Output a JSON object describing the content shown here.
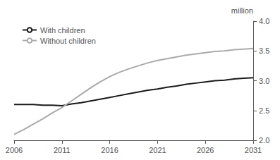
{
  "chart_data": {
    "type": "line",
    "ylabel": "million",
    "x": [
      2006,
      2007,
      2008,
      2009,
      2010,
      2011,
      2012,
      2013,
      2014,
      2015,
      2016,
      2017,
      2018,
      2019,
      2020,
      2021,
      2022,
      2023,
      2024,
      2025,
      2026,
      2027,
      2028,
      2029,
      2030,
      2031
    ],
    "series": [
      {
        "name": "With children",
        "color": "#1a1a1a",
        "values": [
          2.6,
          2.6,
          2.6,
          2.59,
          2.59,
          2.58,
          2.61,
          2.63,
          2.66,
          2.69,
          2.72,
          2.75,
          2.78,
          2.81,
          2.84,
          2.86,
          2.89,
          2.91,
          2.94,
          2.96,
          2.98,
          3.0,
          3.01,
          3.03,
          3.04,
          3.05
        ]
      },
      {
        "name": "Without children",
        "color": "#aaaaaa",
        "values": [
          2.1,
          2.18,
          2.27,
          2.36,
          2.46,
          2.55,
          2.66,
          2.77,
          2.88,
          2.98,
          3.07,
          3.14,
          3.2,
          3.25,
          3.3,
          3.34,
          3.37,
          3.4,
          3.43,
          3.45,
          3.47,
          3.49,
          3.5,
          3.52,
          3.53,
          3.54
        ]
      }
    ],
    "xlim": [
      2006,
      2031
    ],
    "xticks": [
      2006,
      2011,
      2016,
      2021,
      2026,
      2031
    ],
    "ylim": [
      2.0,
      4.0
    ],
    "yticks": [
      {
        "value": 2.0,
        "label": "2.0"
      },
      2.5,
      {
        "value": 3.0,
        "label": "3.0"
      },
      3.5,
      {
        "value": 4.0,
        "label": "4.0"
      }
    ],
    "legend": "upper left",
    "grid": false
  }
}
